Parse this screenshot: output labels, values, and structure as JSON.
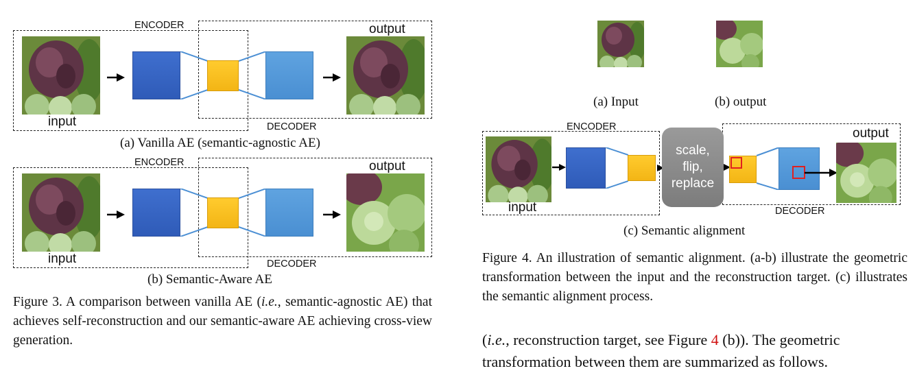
{
  "figure3": {
    "panel_a": {
      "encoder_label": "ENCODER",
      "decoder_label": "DECODER",
      "input_label": "input",
      "output_label": "output",
      "caption": "(a) Vanilla AE (semantic-agnostic AE)"
    },
    "panel_b": {
      "encoder_label": "ENCODER",
      "decoder_label": "DECODER",
      "input_label": "input",
      "output_label": "output",
      "caption": "(b) Semantic-Aware AE"
    },
    "caption_prefix": "Figure 3.  A comparison between vanilla AE (",
    "caption_ie": "i.e.",
    "caption_rest": ", semantic-agnostic AE) that achieves self-reconstruction and our semantic-aware AE achieving cross-view generation."
  },
  "figure4": {
    "sub_a": "(a) Input",
    "sub_b": "(b) output",
    "panel_c": {
      "encoder_label": "ENCODER",
      "decoder_label": "DECODER",
      "input_label": "input",
      "output_label": "output",
      "transform_line1": "scale,",
      "transform_line2": "flip,",
      "transform_line3": "replace"
    },
    "sub_c": "(c) Semantic alignment",
    "caption": "Figure 4. An illustration of semantic alignment. (a-b) illustrate the geometric transformation between the input and the reconstruction target. (c) illustrates the semantic alignment process."
  },
  "body_text": {
    "ie": "i.e.",
    "part1": ", reconstruction target, see Figure ",
    "ref": "4",
    "part2": " (b)). The geometric",
    "line2": "transformation between them are summarized as follows."
  },
  "colors": {
    "encoder": "#3f6fce",
    "decoder": "#5fa3e0",
    "latent": "#ffcb2e",
    "link": "#4b8fd4",
    "highlight": "#e02020",
    "ref": "#d01010"
  }
}
